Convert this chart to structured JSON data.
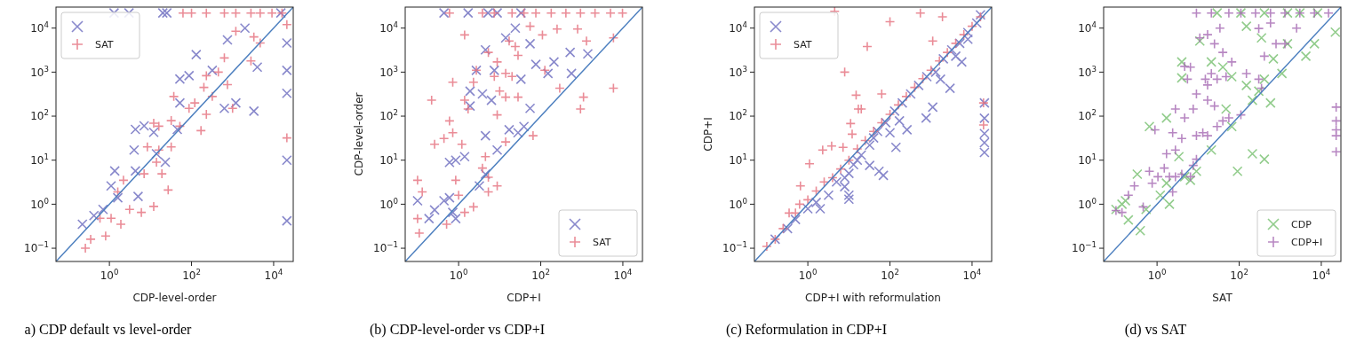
{
  "chart_data": [
    {
      "type": "scatter",
      "xlabel": "CDP-level-order",
      "log": "xy",
      "legend": "top left",
      "annotations": [
        "a) CDP default vs level-order"
      ],
      "xlim": [
        0.05,
        30000
      ],
      "ylim": [
        0.05,
        30000
      ],
      "xticks": [
        {
          "value": 1,
          "label": "10$^{0}$"
        },
        {
          "value": 100,
          "label": "10$^{2}$"
        },
        {
          "value": 10000,
          "label": "10$^{4}$"
        }
      ],
      "yticks": [
        {
          "value": 0.1,
          "label": "10$^{−1}$"
        },
        {
          "value": 1,
          "label": "10$^{0}$"
        },
        {
          "value": 10,
          "label": "10$^{1}$"
        },
        {
          "value": 100,
          "label": "10$^{2}$"
        },
        {
          "value": 1000,
          "label": "10$^{3}$"
        },
        {
          "value": 10000,
          "label": "10$^{4}$"
        }
      ],
      "series": [
        {
          "type": "scatter",
          "marker": "x",
          "color": "#6b6bbf",
          "x": [
            1.3,
            3,
            20,
            25,
            15000,
            130,
            87,
            52,
            320,
            750,
            2000,
            4000,
            1200,
            630,
            3300,
            52,
            45,
            4.3,
            7,
            12,
            4,
            23,
            14,
            4.3,
            1.35,
            1.1,
            5,
            1.6,
            0.7,
            0.42,
            0.22,
            21000,
            21000,
            21000,
            21000,
            21000
          ],
          "values": [
            22000,
            22000,
            22000,
            22000,
            22000,
            2500,
            830,
            700,
            1100,
            5400,
            10000,
            1300,
            200,
            150,
            130,
            200,
            50,
            50,
            60,
            43,
            17,
            9,
            14,
            5.7,
            5.7,
            2.6,
            1.5,
            1.4,
            0.76,
            0.55,
            0.35,
            4600,
            1100,
            330,
            10,
            0.42
          ]
        },
        {
          "type": "scatter",
          "marker": "cross",
          "name": "SAT",
          "color": "#e5707e",
          "x": [
            62,
            100,
            230,
            630,
            1200,
            2800,
            4700,
            9100,
            16000,
            21000,
            21000,
            1200,
            3300,
            4700,
            2800,
            630,
            230,
            450,
            750,
            320,
            200,
            37,
            120,
            87,
            230,
            1000,
            32,
            16,
            12,
            52,
            170,
            8.4,
            16,
            32,
            14,
            7,
            19,
            27,
            2.2,
            1.6,
            3.1,
            6,
            12,
            1.1,
            1.9,
            0.59,
            0.81,
            0.35,
            0.26
          ],
          "values": [
            22000,
            22000,
            22000,
            22000,
            22000,
            22000,
            22000,
            22000,
            22000,
            12000,
            32,
            8500,
            6300,
            4600,
            1800,
            2100,
            830,
            1000,
            520,
            280,
            450,
            280,
            200,
            150,
            110,
            150,
            79,
            59,
            69,
            59,
            47,
            20,
            17,
            20,
            9,
            4.9,
            4.9,
            2.1,
            3.5,
            1.9,
            0.76,
            0.65,
            0.89,
            0.48,
            0.35,
            0.48,
            0.19,
            0.16,
            0.1
          ]
        },
        {
          "type": "line",
          "color": "#4c7fbf",
          "x": [
            0.05,
            30000
          ],
          "values": [
            0.05,
            30000
          ]
        }
      ]
    },
    {
      "type": "scatter",
      "xlabel": "CDP+I",
      "ylabel": "CDP-level-order",
      "log": "xy",
      "legend": "bottom right",
      "annotations": [
        "(b) CDP-level-order vs CDP+I"
      ],
      "xlim": [
        0.05,
        30000
      ],
      "ylim": [
        0.05,
        30000
      ],
      "xticks": [
        {
          "value": 1,
          "label": "10$^{0}$"
        },
        {
          "value": 100,
          "label": "10$^{2}$"
        },
        {
          "value": 10000,
          "label": "10$^{4}$"
        }
      ],
      "yticks": [
        {
          "value": 0.1,
          "label": "10$^{−1}$"
        },
        {
          "value": 1,
          "label": "10$^{0}$"
        },
        {
          "value": 10,
          "label": "10$^{1}$"
        },
        {
          "value": 100,
          "label": "10$^{2}$"
        },
        {
          "value": 1000,
          "label": "10$^{3}$"
        },
        {
          "value": 10000,
          "label": "10$^{4}$"
        }
      ],
      "series": [
        {
          "type": "scatter",
          "marker": "x",
          "color": "#6b6bbf",
          "x": [
            0.44,
            1.7,
            5.2,
            8.7,
            33,
            24,
            14,
            55,
            4.5,
            76,
            210,
            520,
            1400,
            150,
            560,
            2.7,
            7.4,
            1.9,
            3.8,
            6.3,
            33,
            1.9,
            55,
            17,
            28,
            39,
            4.5,
            8.7,
            1.4,
            0.85,
            0.6,
            4.5,
            3.2,
            0.44,
            0.6,
            0.1,
            0.26,
            0.19,
            0.72,
            0.85
          ],
          "values": [
            22000,
            22000,
            22000,
            22000,
            22000,
            10000,
            6000,
            4400,
            3200,
            1500,
            1700,
            2800,
            2600,
            930,
            930,
            1100,
            1100,
            370,
            320,
            230,
            690,
            170,
            150,
            49,
            42,
            58,
            36,
            17,
            12,
            10,
            8.9,
            4.8,
            2.6,
            1.2,
            1.4,
            1.2,
            0.74,
            0.47,
            0.65,
            0.47
          ]
        },
        {
          "type": "scatter",
          "marker": "cross",
          "name": "SAT",
          "color": "#e5707e",
          "x": [
            0.6,
            3.8,
            7.4,
            20,
            39,
            76,
            180,
            410,
            930,
            2100,
            5000,
            9800,
            1.4,
            55,
            110,
            250,
            790,
            1300,
            5900,
            17,
            24,
            28,
            5.3,
            8.7,
            14,
            7.4,
            20,
            2.7,
            2.3,
            0.72,
            126,
            290,
            1100,
            5900,
            930,
            10,
            14,
            28,
            1.4,
            1.7,
            0.22,
            8.7,
            0.6,
            0.72,
            0.44,
            0.26,
            1.2,
            14,
            65,
            4.5,
            3.8,
            5.3,
            8.7,
            5.3,
            0.85,
            1,
            0.1,
            0.13,
            2.3,
            1.4,
            0.1,
            0.11,
            0.51
          ],
          "values": [
            22000,
            22000,
            22000,
            22000,
            22000,
            22000,
            22000,
            22000,
            22000,
            22000,
            22000,
            22000,
            7000,
            11000,
            7000,
            9500,
            9500,
            5100,
            6000,
            5100,
            3800,
            2400,
            2800,
            1700,
            940,
            800,
            800,
            1100,
            590,
            590,
            1100,
            430,
            270,
            430,
            145,
            370,
            270,
            270,
            230,
            145,
            230,
            107,
            78,
            42,
            31,
            23,
            23,
            26,
            36,
            12,
            6.6,
            4.1,
            2.6,
            1.9,
            3.5,
            1.6,
            3.5,
            1.9,
            0.87,
            0.65,
            0.47,
            0.22,
            0.35
          ]
        },
        {
          "type": "line",
          "color": "#4c7fbf",
          "x": [
            0.05,
            30000
          ],
          "values": [
            0.05,
            30000
          ]
        }
      ]
    },
    {
      "type": "scatter",
      "xlabel": "CDP+I with reformulation",
      "ylabel": "CDP+I",
      "log": "xy",
      "legend": "top left",
      "annotations": [
        "(c) Reformulation in CDP+I"
      ],
      "xlim": [
        0.05,
        30000
      ],
      "ylim": [
        0.05,
        30000
      ],
      "xticks": [
        {
          "value": 1,
          "label": "10$^{0}$"
        },
        {
          "value": 100,
          "label": "10$^{2}$"
        },
        {
          "value": 10000,
          "label": "10$^{4}$"
        }
      ],
      "yticks": [
        {
          "value": 0.1,
          "label": "10$^{−1}$"
        },
        {
          "value": 1,
          "label": "10$^{0}$"
        },
        {
          "value": 10,
          "label": "10$^{1}$"
        },
        {
          "value": 100,
          "label": "10$^{2}$"
        },
        {
          "value": 1000,
          "label": "10$^{3}$"
        },
        {
          "value": 10000,
          "label": "10$^{4}$"
        }
      ],
      "series": [
        {
          "type": "scatter",
          "marker": "x",
          "color": "#6b6bbf",
          "x": [
            0.16,
            0.32,
            0.5,
            1,
            1.6,
            2,
            3.2,
            5,
            7.9,
            10,
            13,
            16,
            20,
            32,
            40,
            50,
            79,
            130,
            200,
            320,
            500,
            790,
            1300,
            2000,
            3200,
            5000,
            7900,
            13000,
            16000,
            10,
            10,
            7.9,
            32,
            54,
            69,
            100,
            140,
            260,
            170,
            760,
            1100,
            2900,
            1700,
            5600,
            4000,
            7900,
            20000,
            20000,
            20000,
            20000,
            20000
          ],
          "values": [
            0.16,
            0.28,
            0.45,
            0.79,
            1.1,
            0.79,
            1.6,
            3.2,
            4,
            5,
            7.9,
            10,
            13,
            22,
            32,
            45,
            71,
            130,
            200,
            320,
            500,
            790,
            1000,
            2000,
            3200,
            4500,
            7900,
            13000,
            20000,
            1.6,
            1.3,
            2.5,
            7.6,
            5.6,
            4.5,
            42,
            19.5,
            49,
            78,
            91,
            160,
            430,
            690,
            1700,
            2300,
            5600,
            15,
            25,
            40,
            90,
            200
          ]
        },
        {
          "type": "scatter",
          "marker": "cross",
          "name": "SAT",
          "color": "#e5707e",
          "x": [
            0.1,
            0.16,
            0.25,
            0.35,
            0.5,
            0.63,
            1,
            1.6,
            2.5,
            4,
            6.3,
            10,
            16,
            25,
            40,
            63,
            100,
            160,
            250,
            400,
            630,
            1000,
            1600,
            2500,
            4000,
            6300,
            10000,
            16000,
            0.66,
            1.1,
            2.3,
            3.8,
            7.2,
            11,
            12,
            15,
            17,
            20,
            7.9,
            28,
            63,
            100,
            550,
            1900,
            1100,
            4.5,
            19000,
            19000
          ],
          "values": [
            0.11,
            0.16,
            0.28,
            0.63,
            0.63,
            1,
            1.26,
            2,
            3.2,
            4,
            6.3,
            10,
            18,
            28,
            45,
            71,
            110,
            180,
            280,
            450,
            710,
            1100,
            1800,
            2800,
            4500,
            7100,
            11000,
            18000,
            2.6,
            8.3,
            17,
            21,
            19.5,
            68,
            39,
            300,
            145,
            145,
            1000,
            3800,
            320,
            14000,
            22000,
            18000,
            5100,
            24000,
            200,
            63
          ]
        },
        {
          "type": "line",
          "color": "#4c7fbf",
          "x": [
            0.05,
            30000
          ],
          "values": [
            0.05,
            30000
          ]
        }
      ]
    },
    {
      "type": "scatter",
      "xlabel": "SAT",
      "log": "xy",
      "legend": "bottom right",
      "annotations": [
        "(d) vs SAT"
      ],
      "xlim": [
        0.05,
        30000
      ],
      "ylim": [
        0.05,
        30000
      ],
      "xticks": [
        {
          "value": 1,
          "label": "10$^{0}$"
        },
        {
          "value": 100,
          "label": "10$^{2}$"
        },
        {
          "value": 10000,
          "label": "10$^{4}$"
        }
      ],
      "yticks": [
        {
          "value": 0.1,
          "label": "10$^{−1}$"
        },
        {
          "value": 1,
          "label": "10$^{0}$"
        },
        {
          "value": 10,
          "label": "10$^{1}$"
        },
        {
          "value": 100,
          "label": "10$^{2}$"
        },
        {
          "value": 1000,
          "label": "10$^{3}$"
        },
        {
          "value": 10000,
          "label": "10$^{4}$"
        }
      ],
      "series": [
        {
          "type": "scatter",
          "marker": "x",
          "name": "CDP",
          "color": "#77c070",
          "x": [
            0.39,
            0.2,
            0.14,
            0.1,
            0.33,
            0.17,
            0.54,
            2,
            1.7,
            1.2,
            0.65,
            1.7,
            3.4,
            4.7,
            6.5,
            9.1,
            21,
            4,
            4,
            11,
            21,
            40,
            66,
            48,
            66,
            91,
            210,
            410,
            150,
            210,
            300,
            580,
            410,
            1100,
            680,
            1500,
            4200,
            6800,
            22000,
            150,
            350,
            29,
            110,
            410,
            1500,
            3000,
            8100
          ],
          "values": [
            0.25,
            0.44,
            1.0,
            0.76,
            4.8,
            1.2,
            0.76,
            1.0,
            3,
            1.6,
            58,
            91,
            12,
            4.2,
            3.5,
            5.6,
            17,
            1700,
            740,
            5100,
            1700,
            1300,
            790,
            145,
            58,
            5.6,
            14,
            10.5,
            500,
            230,
            370,
            200,
            690,
            930,
            2000,
            4400,
            2300,
            4400,
            8100,
            11000,
            6000,
            22000,
            22000,
            22000,
            22000,
            22000,
            22000
          ]
        },
        {
          "type": "scatter",
          "marker": "cross",
          "name": "CDP+I",
          "color": "#a66ab3",
          "x": [
            0.1,
            0.14,
            0.2,
            0.28,
            0.46,
            0.65,
            0.76,
            1.05,
            1.5,
            2,
            2.8,
            2.4,
            4,
            6.5,
            7.6,
            9.1,
            2.8,
            1.7,
            0.89,
            2.4,
            4,
            2.8,
            4.7,
            9.1,
            13,
            17,
            29,
            40,
            56,
            110,
            9.1,
            7.6,
            17,
            25,
            15,
            17,
            29,
            48,
            21,
            5.5,
            6.5,
            4.7,
            150,
            300,
            350,
            11,
            17,
            25,
            40,
            66,
            34,
            410,
            790,
            1300,
            2500,
            300,
            580,
            9.1,
            21,
            56,
            110,
            250,
            580,
            1300,
            3000,
            6800,
            15000,
            23000,
            23000,
            23000,
            23000,
            23000
          ],
          "values": [
            0.72,
            0.65,
            1.6,
            2.6,
            0.87,
            5.6,
            3,
            4.2,
            6.6,
            4.2,
            4.2,
            1.9,
            4.8,
            4.2,
            7.6,
            10.5,
            17,
            14,
            49,
            42,
            31,
            145,
            91,
            36,
            42,
            36,
            58,
            78,
            91,
            107,
            320,
            145,
            230,
            170,
            690,
            510,
            690,
            790,
            930,
            690,
            1300,
            1350,
            930,
            690,
            430,
            6000,
            7100,
            4400,
            2800,
            1700,
            10000,
            2300,
            4400,
            4400,
            10000,
            9800,
            13000,
            22000,
            22000,
            22000,
            22000,
            22000,
            22000,
            22000,
            22000,
            22000,
            22000,
            160,
            78,
            49,
            36,
            15.5
          ]
        },
        {
          "type": "line",
          "color": "#4c7fbf",
          "x": [
            0.05,
            30000
          ],
          "values": [
            0.05,
            30000
          ]
        }
      ]
    }
  ]
}
